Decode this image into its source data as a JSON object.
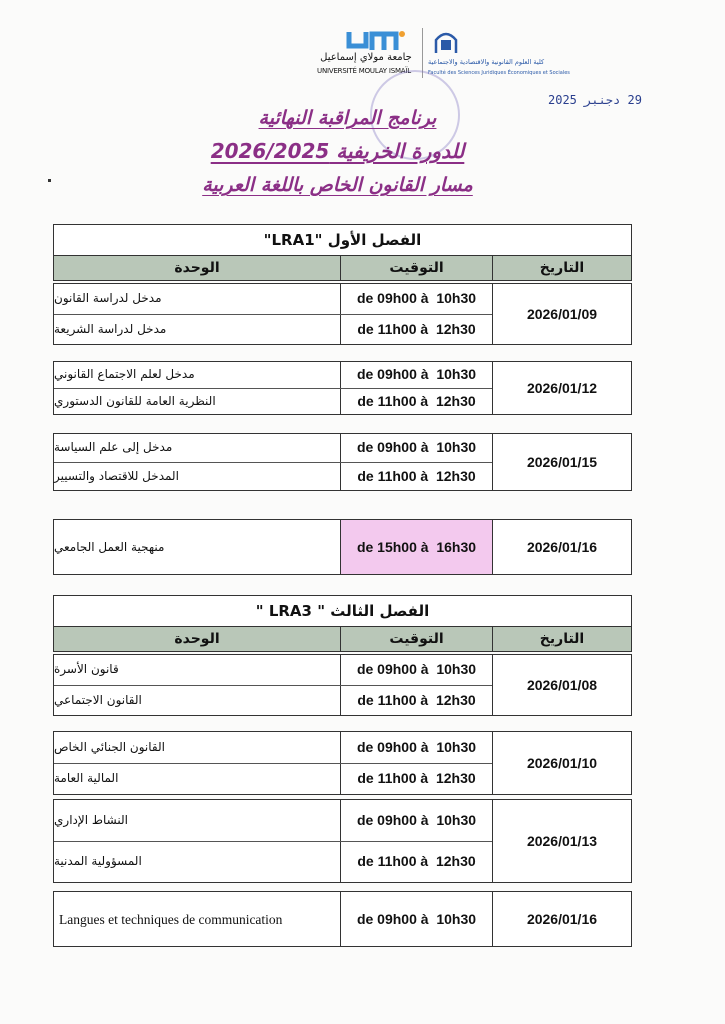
{
  "header": {
    "university_ar": "جامعة مولاي إسماعيل",
    "university_fr": "UNIVERSITÉ MOULAY ISMAÏL",
    "faculty_ar": "كلية العلوم القانونية والاقتصادية والاجتماعية",
    "faculty_fr": "Faculté des Sciences Juridiques Économiques et Sociales",
    "date_stamp": "29 دجنبر 2025",
    "logo_colors": {
      "um_blue": "#3a8fd6",
      "um_orange": "#f0a030",
      "faculty_blue": "#2b5aa8"
    }
  },
  "titles": {
    "line1": "برنامج المراقبة النهائية",
    "line2": "للدورة الخريفية 2026/2025",
    "line3": "مسار القانون الخاص باللغة العربية",
    "color": "#8b2f86"
  },
  "columns": {
    "unit": "الوحدة",
    "time": "التوقيت",
    "date": "التاريخ"
  },
  "sections": [
    {
      "title": "الفصل  الأول \"LRA1\"",
      "groups": [
        {
          "date": "2026/01/09",
          "rows": [
            {
              "unit": "مدخل لدراسة القانون",
              "time": "de 09h00 à  10h30"
            },
            {
              "unit": "مدخل لدراسة الشريعة",
              "time": "de 11h00 à  12h30"
            }
          ]
        },
        {
          "date": "2026/01/12",
          "rows": [
            {
              "unit": "مدخل لعلم الاجتماع القانوني",
              "time": "de 09h00 à  10h30"
            },
            {
              "unit": "النظرية العامة للقانون الدستوري",
              "time": "de 11h00 à  12h30"
            }
          ]
        },
        {
          "date": "2026/01/15",
          "rows": [
            {
              "unit": "مدخل إلى علم السياسة",
              "time": "de 09h00 à  10h30"
            },
            {
              "unit": "المدخل للاقتصاد والتسيير",
              "time": "de 11h00 à  12h30"
            }
          ]
        },
        {
          "date": "2026/01/16",
          "rows": [
            {
              "unit": "منهجية العمل الجامعي",
              "time": "de 15h00 à  16h30",
              "highlight": "#f3c9ee"
            }
          ]
        }
      ]
    },
    {
      "title": "الفصل  الثالث \" LRA3 \"",
      "groups": [
        {
          "date": "2026/01/08",
          "rows": [
            {
              "unit": "قانون الأسرة",
              "time": "de 09h00 à  10h30"
            },
            {
              "unit": "القانون الاجتماعي",
              "time": "de 11h00 à  12h30"
            }
          ]
        },
        {
          "date": "2026/01/10",
          "rows": [
            {
              "unit": "القانون الجنائي الخاص",
              "time": "de 09h00 à  10h30"
            },
            {
              "unit": "المالية العامة",
              "time": "de 11h00 à  12h30"
            }
          ]
        },
        {
          "date": "2026/01/13",
          "rows": [
            {
              "unit": "النشاط الإداري",
              "time": "de 09h00 à  10h30"
            },
            {
              "unit": "المسؤولية المدنية",
              "time": "de 11h00 à  12h30"
            }
          ]
        },
        {
          "date": "2026/01/16",
          "rows": [
            {
              "unit": "Langues et techniques de communication",
              "time": "de 09h00 à  10h30",
              "lang": "fr"
            }
          ]
        }
      ]
    }
  ]
}
